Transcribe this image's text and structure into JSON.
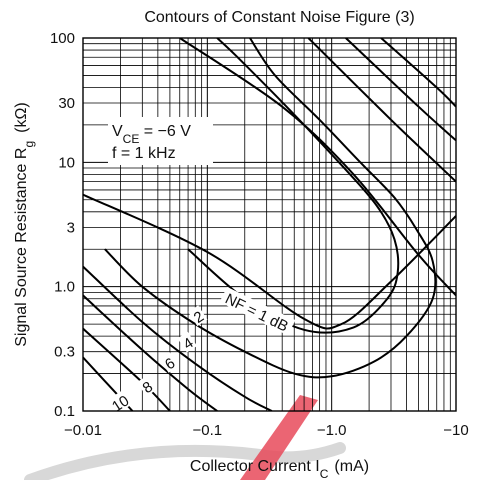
{
  "chart_data": {
    "type": "line",
    "title": "Contours of Constant Noise Figure (3)",
    "xlabel": "Collector Current",
    "xlabel_symbol": "I",
    "xlabel_subscript": "C",
    "xlabel_unit": "(mA)",
    "ylabel": "Signal Source Resistance",
    "ylabel_symbol": "R",
    "ylabel_subscript": "g",
    "ylabel_unit": "(kΩ)",
    "x_scale": "log",
    "y_scale": "log",
    "x_direction": "increasing magnitude of negative current",
    "xlim": [
      -0.01,
      -10
    ],
    "ylim": [
      0.1,
      100
    ],
    "x_ticks": [
      -0.01,
      -0.1,
      -1.0,
      -10
    ],
    "x_tick_labels": [
      "−0.01",
      "−0.1",
      "−1.0",
      "−10"
    ],
    "y_ticks": [
      0.1,
      0.3,
      1.0,
      3,
      10,
      30,
      100
    ],
    "y_tick_labels": [
      "0.1",
      "0.3",
      "1.0",
      "3",
      "10",
      "30",
      "100"
    ],
    "grid": true,
    "annotations": [
      {
        "lines": [
          [
            "V",
            "CE",
            " = −6 V"
          ],
          [
            "f = 1 kHz"
          ]
        ]
      }
    ],
    "series": [
      {
        "name": "NF = 1 dB",
        "label": "NF = 1 dB",
        "points": [
          [
            -0.07,
            2.0
          ],
          [
            -0.2,
            0.8
          ],
          [
            -0.6,
            0.45
          ],
          [
            -1.5,
            0.47
          ],
          [
            -2.8,
            0.8
          ],
          [
            -3.4,
            1.3
          ],
          [
            -3.2,
            2.4
          ],
          [
            -2.3,
            4.5
          ],
          [
            -1.2,
            9.5
          ],
          [
            -0.45,
            27
          ],
          [
            -0.17,
            72
          ],
          [
            -0.12,
            100
          ]
        ]
      },
      {
        "name": "2",
        "label": "2",
        "points": [
          [
            -0.015,
            2.0
          ],
          [
            -0.03,
            1.0
          ],
          [
            -0.08,
            0.5
          ],
          [
            -0.2,
            0.3
          ],
          [
            -0.5,
            0.2
          ],
          [
            -1.0,
            0.19
          ],
          [
            -2.2,
            0.25
          ],
          [
            -4.0,
            0.4
          ],
          [
            -6.5,
            0.8
          ],
          [
            -6.5,
            1.6
          ],
          [
            -4.8,
            2.9
          ],
          [
            -3.2,
            5.2
          ],
          [
            -1.7,
            10
          ],
          [
            -0.8,
            22
          ],
          [
            -0.35,
            50
          ],
          [
            -0.22,
            100
          ]
        ]
      },
      {
        "name": "4",
        "label": "4",
        "points": [
          [
            -0.01,
            1.45
          ],
          [
            -0.03,
            0.52
          ],
          [
            -0.08,
            0.24
          ],
          [
            -0.2,
            0.13
          ],
          [
            -0.33,
            0.1
          ]
        ]
      },
      {
        "name": "6",
        "label": "6",
        "points": [
          [
            -0.01,
            0.85
          ],
          [
            -0.03,
            0.31
          ],
          [
            -0.07,
            0.15
          ],
          [
            -0.12,
            0.1
          ]
        ]
      },
      {
        "name": "8",
        "label": "8",
        "points": [
          [
            -0.01,
            0.46
          ],
          [
            -0.03,
            0.17
          ],
          [
            -0.05,
            0.1
          ]
        ]
      },
      {
        "name": "10",
        "label": "10",
        "points": [
          [
            -0.01,
            0.27
          ],
          [
            -0.025,
            0.1
          ]
        ]
      },
      {
        "name": "upper-1",
        "points": [
          [
            -0.01,
            5.5
          ],
          [
            -0.1,
            1.9
          ],
          [
            -0.6,
            0.55
          ],
          [
            -1.2,
            0.5
          ],
          [
            -3.0,
            1.1
          ],
          [
            -10,
            3.7
          ]
        ]
      },
      {
        "name": "upper-2",
        "points": [
          [
            -0.06,
            100
          ],
          [
            -0.4,
            28
          ],
          [
            -1.5,
            8
          ],
          [
            -5,
            1.8
          ],
          [
            -10,
            0.85
          ]
        ]
      },
      {
        "name": "upper-3",
        "points": [
          [
            -0.65,
            100
          ],
          [
            -3,
            22
          ],
          [
            -10,
            7
          ]
        ]
      },
      {
        "name": "upper-4",
        "points": [
          [
            -1.3,
            100
          ],
          [
            -5,
            28
          ],
          [
            -10,
            15
          ]
        ]
      },
      {
        "name": "upper-5",
        "points": [
          [
            -2.5,
            100
          ],
          [
            -7,
            40
          ],
          [
            -10,
            28
          ]
        ]
      }
    ]
  },
  "watermark": {
    "colors": [
      "#d8d8d8",
      "#e74a5a"
    ]
  }
}
